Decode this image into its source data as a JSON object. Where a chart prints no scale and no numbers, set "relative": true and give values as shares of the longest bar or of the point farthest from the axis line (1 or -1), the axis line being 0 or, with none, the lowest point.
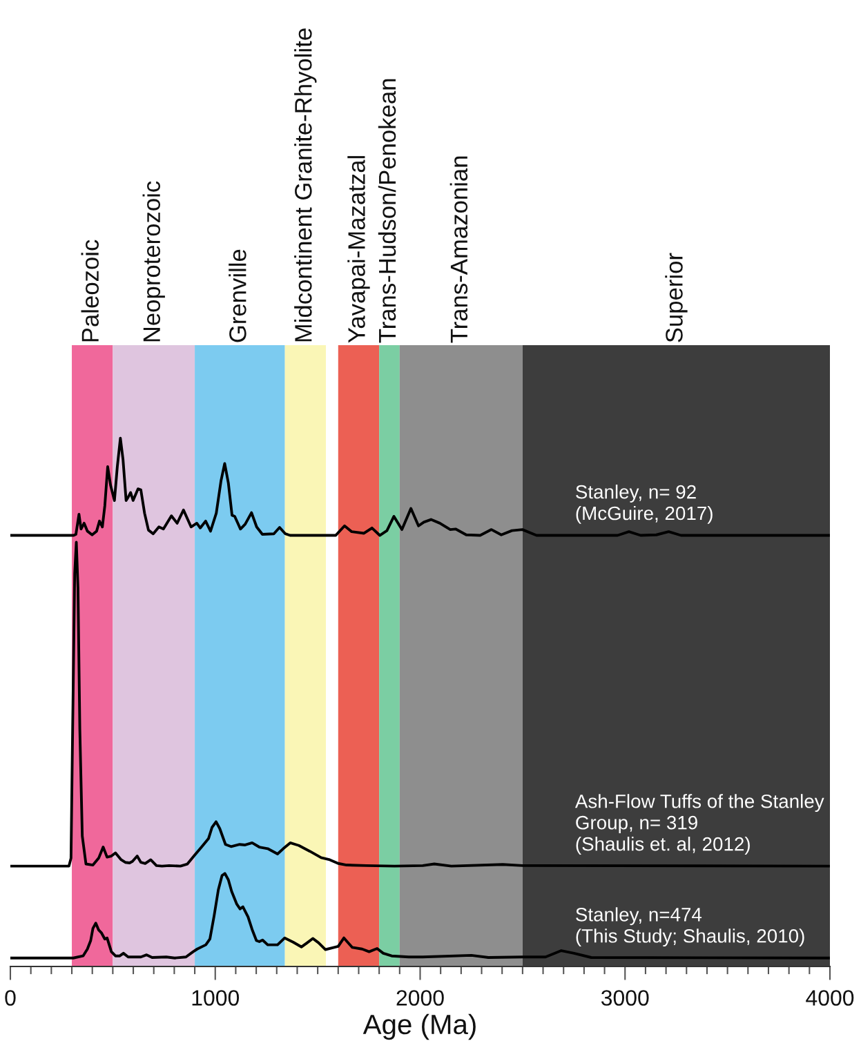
{
  "chart_data": {
    "type": "line",
    "relative": true,
    "xlabel": "Age (Ma)",
    "xlim": [
      0,
      4000
    ],
    "xticks": [
      0,
      {
        "value": 100,
        "label": null
      },
      {
        "value": 200,
        "label": null
      },
      {
        "value": 300,
        "label": null
      },
      {
        "value": 400,
        "label": null
      },
      {
        "value": 500,
        "label": null
      },
      {
        "value": 600,
        "label": null
      },
      {
        "value": 700,
        "label": null
      },
      {
        "value": 800,
        "label": null
      },
      {
        "value": 900,
        "label": null
      },
      1000,
      {
        "value": 1100,
        "label": null
      },
      {
        "value": 1200,
        "label": null
      },
      {
        "value": 1300,
        "label": null
      },
      {
        "value": 1400,
        "label": null
      },
      {
        "value": 1500,
        "label": null
      },
      {
        "value": 1600,
        "label": null
      },
      {
        "value": 1700,
        "label": null
      },
      {
        "value": 1800,
        "label": null
      },
      {
        "value": 1900,
        "label": null
      },
      2000,
      {
        "value": 2100,
        "label": null
      },
      {
        "value": 2200,
        "label": null
      },
      {
        "value": 2300,
        "label": null
      },
      {
        "value": 2400,
        "label": null
      },
      {
        "value": 2500,
        "label": null
      },
      {
        "value": 2600,
        "label": null
      },
      {
        "value": 2700,
        "label": null
      },
      {
        "value": 2800,
        "label": null
      },
      {
        "value": 2900,
        "label": null
      },
      3000,
      {
        "value": 3100,
        "label": null
      },
      {
        "value": 3200,
        "label": null
      },
      {
        "value": 3300,
        "label": null
      },
      {
        "value": 3400,
        "label": null
      },
      {
        "value": 3500,
        "label": null
      },
      {
        "value": 3600,
        "label": null
      },
      {
        "value": 3700,
        "label": null
      },
      {
        "value": 3800,
        "label": null
      },
      {
        "value": 3900,
        "label": null
      },
      4000
    ],
    "bands": [
      {
        "axis": "x",
        "from": 300,
        "to": 500,
        "label": "Paleozoic",
        "color": "#f0689b"
      },
      {
        "axis": "x",
        "from": 500,
        "to": 900,
        "label": "Neoproterozoic",
        "color": "#dfc5df"
      },
      {
        "axis": "x",
        "from": 900,
        "to": 1340,
        "label": "Grenville",
        "color": "#7ccbf0"
      },
      {
        "axis": "x",
        "from": 1340,
        "to": 1540,
        "label": "Midcontinent Granite-Rhyolite",
        "color": "#faf6b6"
      },
      {
        "axis": "x",
        "from": 1600,
        "to": 1800,
        "label": "Yavapai-Mazatzal",
        "color": "#ec6054"
      },
      {
        "axis": "x",
        "from": 1800,
        "to": 1900,
        "label": "Trans-Hudson/Penokean",
        "color": "#7bcea3"
      },
      {
        "axis": "x",
        "from": 1900,
        "to": 2500,
        "label": "Trans-Amazonian",
        "color": "#8e8e8e"
      },
      {
        "axis": "x",
        "from": 2500,
        "to": 4000,
        "label": "Superior",
        "color": "#3d3d3d"
      }
    ],
    "series": [
      {
        "name": "Stanley, n= 92\n(McGuire, 2017)",
        "color": "#000000",
        "x": [
          0,
          309,
          320,
          335,
          345,
          360,
          376,
          399,
          421,
          435,
          449,
          461,
          475,
          489,
          508,
          522,
          537,
          550,
          565,
          576,
          587,
          599,
          623,
          637,
          655,
          674,
          697,
          725,
          747,
          786,
          814,
          845,
          882,
          910,
          927,
          953,
          977,
          1005,
          1028,
          1046,
          1064,
          1082,
          1095,
          1123,
          1146,
          1177,
          1202,
          1230,
          1286,
          1314,
          1342,
          1365,
          1588,
          1631,
          1666,
          1726,
          1765,
          1803,
          1838,
          1872,
          1911,
          1955,
          1992,
          2018,
          2053,
          2096,
          2147,
          2173,
          2225,
          2293,
          2348,
          2396,
          2448,
          2499,
          2568,
          2964,
          3019,
          3076,
          3153,
          3213,
          3273,
          4000
        ],
        "values": [
          0.816,
          0.816,
          0.818,
          0.856,
          0.828,
          0.839,
          0.824,
          0.817,
          0.824,
          0.843,
          0.832,
          0.872,
          0.946,
          0.911,
          0.882,
          0.946,
          1.0,
          0.959,
          0.882,
          0.889,
          0.897,
          0.882,
          0.904,
          0.902,
          0.858,
          0.826,
          0.819,
          0.832,
          0.828,
          0.853,
          0.839,
          0.864,
          0.832,
          0.839,
          0.83,
          0.843,
          0.824,
          0.858,
          0.919,
          0.952,
          0.915,
          0.854,
          0.852,
          0.828,
          0.837,
          0.859,
          0.832,
          0.818,
          0.819,
          0.831,
          0.819,
          0.816,
          0.816,
          0.834,
          0.823,
          0.82,
          0.83,
          0.816,
          0.825,
          0.852,
          0.827,
          0.867,
          0.834,
          0.841,
          0.846,
          0.839,
          0.827,
          0.828,
          0.817,
          0.816,
          0.827,
          0.817,
          0.825,
          0.827,
          0.816,
          0.816,
          0.823,
          0.816,
          0.817,
          0.823,
          0.816,
          0.816
        ]
      },
      {
        "name": "Ash-Flow Tuffs of the Stanley\nGroup, n= 319\n(Shaulis et. al, 2012)",
        "color": "#000000",
        "x": [
          0,
          286,
          296,
          304,
          314,
          322,
          330,
          339,
          351,
          369,
          403,
          431,
          453,
          472,
          493,
          513,
          541,
          561,
          582,
          596,
          619,
          637,
          658,
          685,
          713,
          740,
          775,
          830,
          864,
          898,
          933,
          967,
          984,
          1004,
          1022,
          1050,
          1077,
          1119,
          1146,
          1180,
          1215,
          1256,
          1304,
          1332,
          1366,
          1408,
          1462,
          1517,
          1559,
          1600,
          1641,
          1737,
          1875,
          2013,
          2069,
          2152,
          2403,
          2500,
          4000
        ],
        "values": [
          0.19,
          0.19,
          0.205,
          0.45,
          0.744,
          0.803,
          0.717,
          0.45,
          0.247,
          0.194,
          0.192,
          0.205,
          0.226,
          0.207,
          0.209,
          0.215,
          0.202,
          0.197,
          0.196,
          0.199,
          0.209,
          0.197,
          0.195,
          0.202,
          0.191,
          0.19,
          0.191,
          0.19,
          0.194,
          0.21,
          0.226,
          0.242,
          0.263,
          0.274,
          0.261,
          0.231,
          0.227,
          0.231,
          0.23,
          0.234,
          0.226,
          0.223,
          0.213,
          0.223,
          0.234,
          0.229,
          0.218,
          0.206,
          0.202,
          0.195,
          0.192,
          0.191,
          0.19,
          0.191,
          0.194,
          0.19,
          0.193,
          0.191,
          0.19
        ]
      },
      {
        "name": "Stanley, n=474\n(This Study; Shaulis, 2010)",
        "color": "#000000",
        "x": [
          0,
          307,
          355,
          376,
          392,
          403,
          417,
          431,
          444,
          461,
          472,
          493,
          513,
          534,
          552,
          575,
          637,
          665,
          692,
          761,
          802,
          857,
          892,
          912,
          954,
          974,
          995,
          1015,
          1033,
          1047,
          1064,
          1080,
          1105,
          1121,
          1135,
          1160,
          1180,
          1201,
          1215,
          1231,
          1256,
          1304,
          1339,
          1380,
          1421,
          1449,
          1476,
          1504,
          1538,
          1580,
          1600,
          1628,
          1648,
          1669,
          1717,
          1751,
          1790,
          1820,
          1861,
          1944,
          2013,
          2250,
          2333,
          2500,
          2612,
          2689,
          2751,
          2835,
          4000
        ],
        "values": [
          0.016,
          0.016,
          0.02,
          0.033,
          0.049,
          0.072,
          0.082,
          0.069,
          0.064,
          0.052,
          0.054,
          0.028,
          0.02,
          0.02,
          0.025,
          0.018,
          0.018,
          0.022,
          0.017,
          0.018,
          0.016,
          0.018,
          0.028,
          0.033,
          0.041,
          0.052,
          0.097,
          0.145,
          0.172,
          0.176,
          0.164,
          0.142,
          0.118,
          0.109,
          0.113,
          0.094,
          0.07,
          0.049,
          0.047,
          0.05,
          0.041,
          0.041,
          0.054,
          0.046,
          0.037,
          0.045,
          0.053,
          0.045,
          0.032,
          0.036,
          0.038,
          0.054,
          0.045,
          0.036,
          0.033,
          0.028,
          0.034,
          0.025,
          0.02,
          0.018,
          0.018,
          0.021,
          0.017,
          0.018,
          0.018,
          0.03,
          0.025,
          0.017,
          0.016
        ]
      }
    ]
  }
}
